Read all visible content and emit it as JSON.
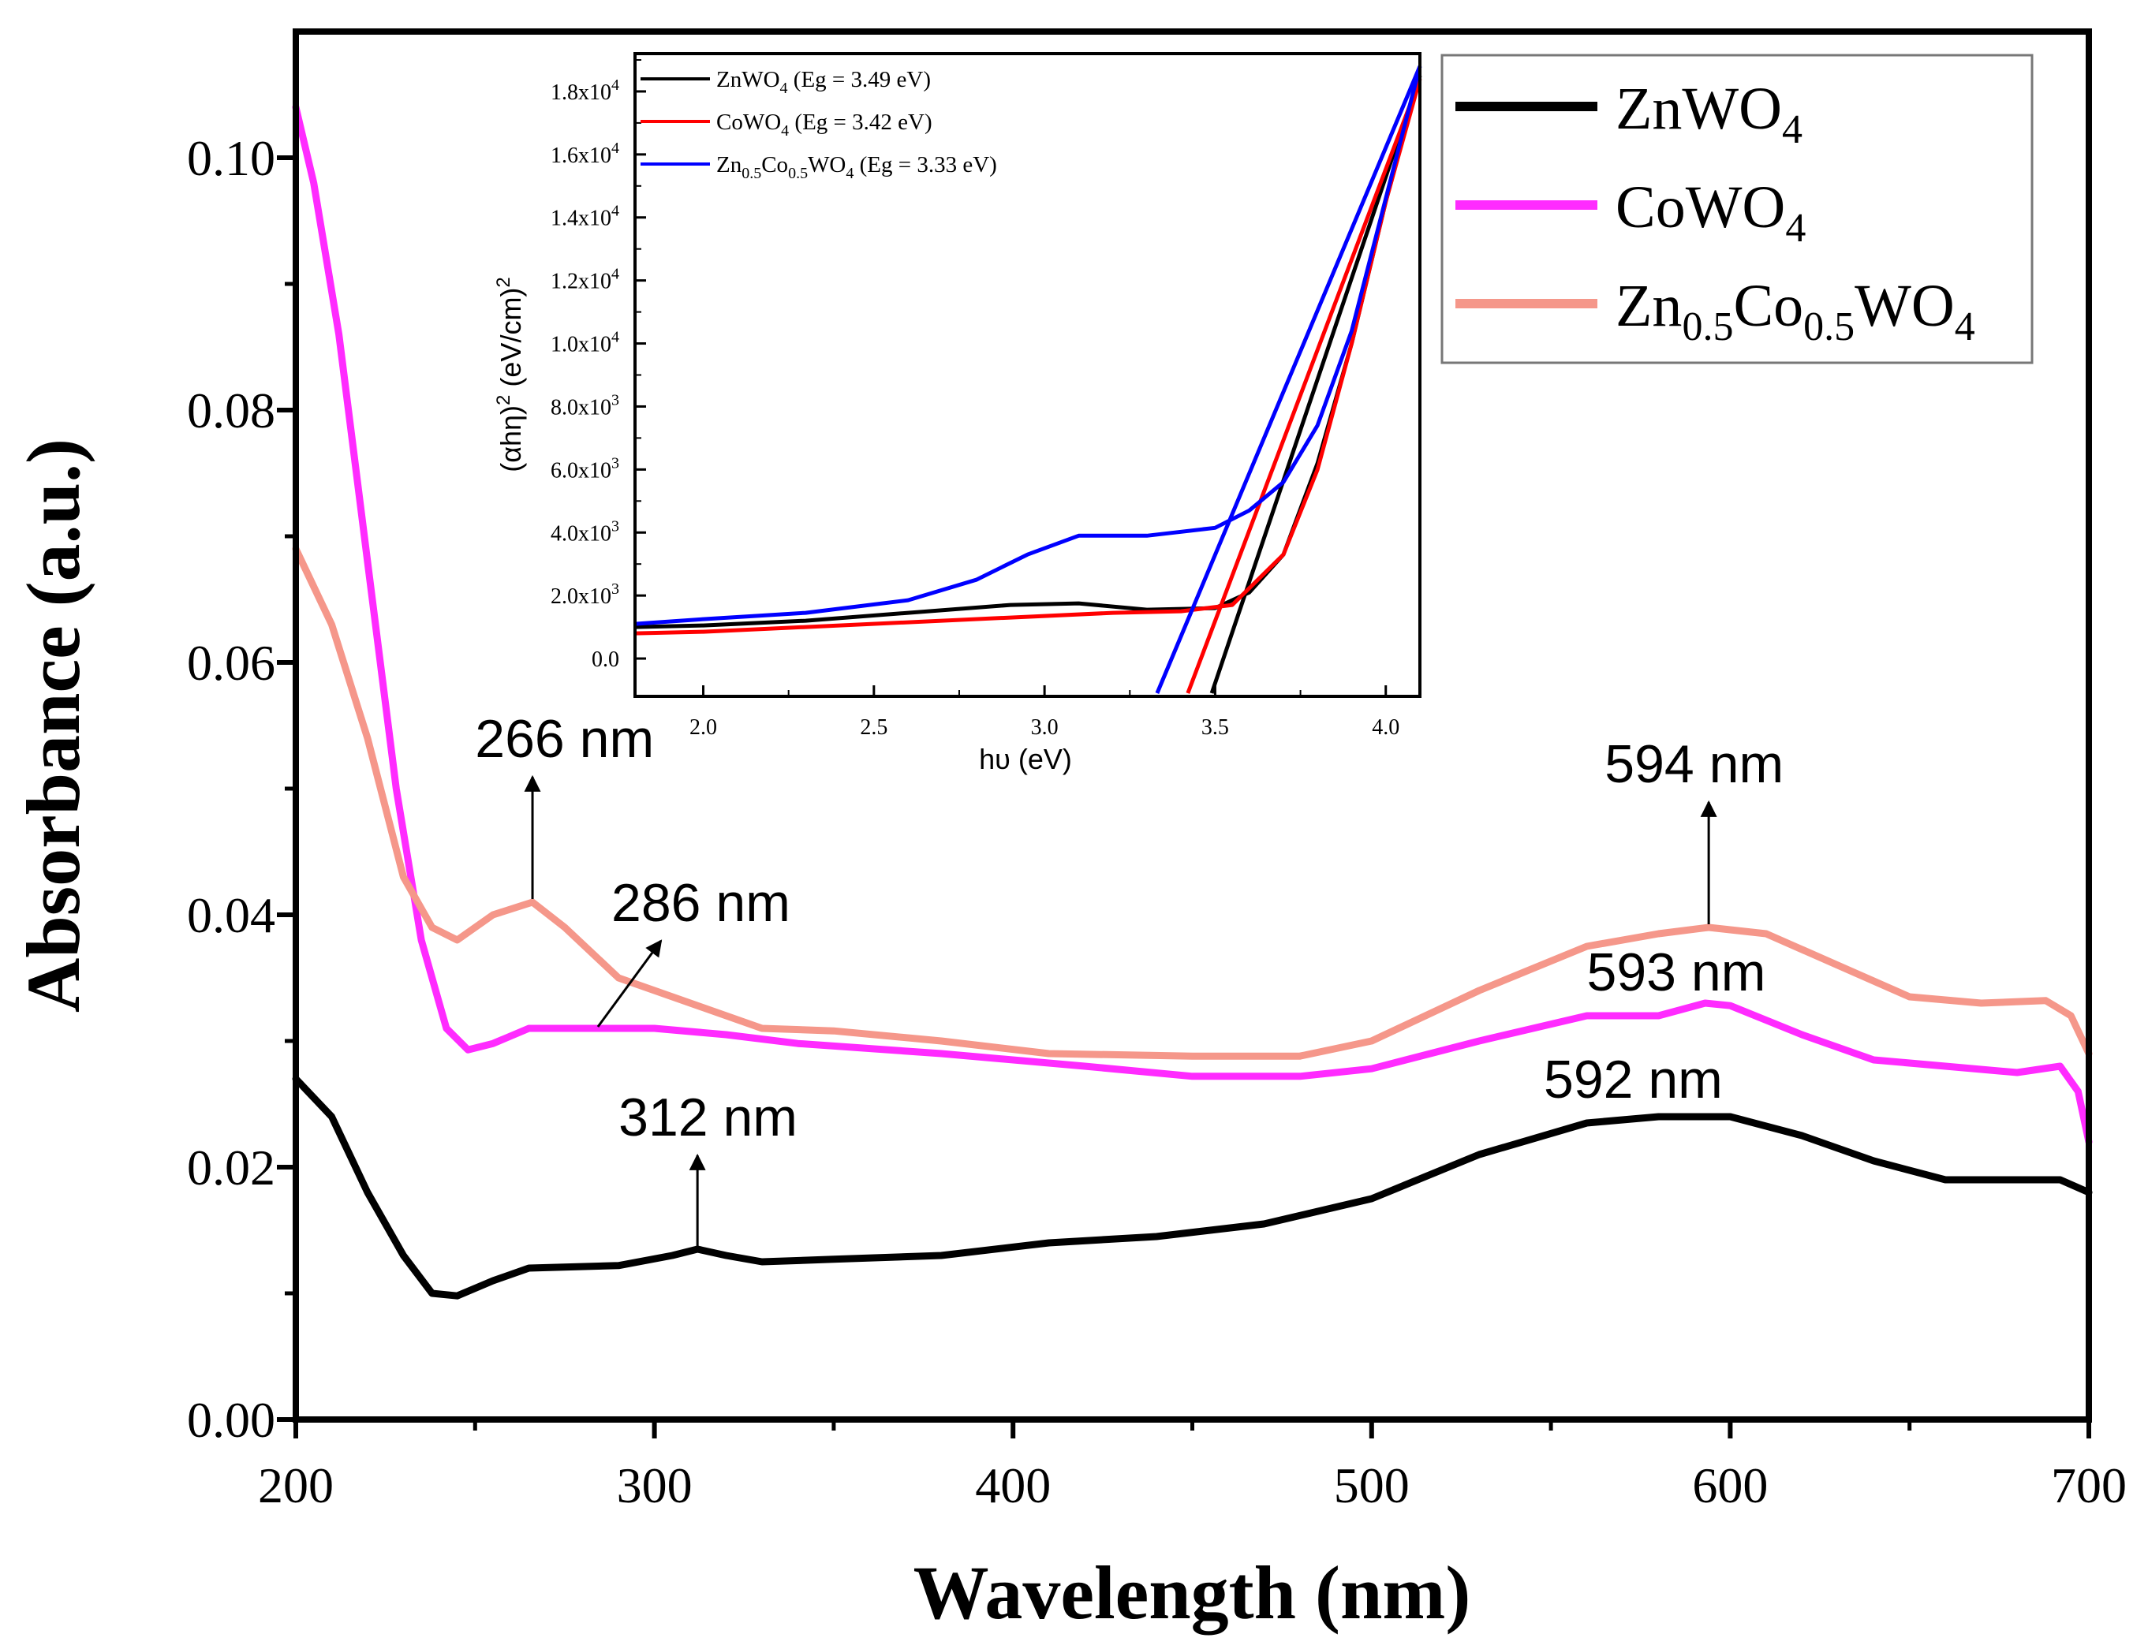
{
  "chart_data": [
    {
      "type": "line",
      "xlabel": "Wavelength (nm)",
      "ylabel": "Absorbance (a.u.)",
      "xlim": [
        200,
        700
      ],
      "ylim": [
        0.0,
        0.11
      ],
      "x_ticks": [
        "200",
        "300",
        "400",
        "500",
        "600",
        "700"
      ],
      "y_ticks": [
        "0.00",
        "0.02",
        "0.04",
        "0.06",
        "0.08",
        "0.10"
      ],
      "legend_position": "top-right",
      "series": [
        {
          "name": "ZnWO4",
          "legend": {
            "base": "ZnWO",
            "sub": "4",
            "base2": "",
            "sub2": "",
            "tail": ""
          },
          "color": "#000000",
          "points": [
            [
              200,
              0.027
            ],
            [
              210,
              0.024
            ],
            [
              220,
              0.018
            ],
            [
              230,
              0.013
            ],
            [
              238,
              0.01
            ],
            [
              245,
              0.0098
            ],
            [
              255,
              0.011
            ],
            [
              265,
              0.012
            ],
            [
              290,
              0.0122
            ],
            [
              305,
              0.013
            ],
            [
              312,
              0.0135
            ],
            [
              320,
              0.013
            ],
            [
              330,
              0.0125
            ],
            [
              350,
              0.0127
            ],
            [
              380,
              0.013
            ],
            [
              410,
              0.014
            ],
            [
              440,
              0.0145
            ],
            [
              470,
              0.0155
            ],
            [
              500,
              0.0175
            ],
            [
              530,
              0.021
            ],
            [
              560,
              0.0235
            ],
            [
              580,
              0.024
            ],
            [
              600,
              0.024
            ],
            [
              620,
              0.0225
            ],
            [
              640,
              0.0205
            ],
            [
              660,
              0.019
            ],
            [
              680,
              0.019
            ],
            [
              692,
              0.019
            ],
            [
              700,
              0.018
            ]
          ]
        },
        {
          "name": "CoWO4",
          "legend": {
            "base": "CoWO",
            "sub": "4",
            "base2": "",
            "sub2": "",
            "tail": ""
          },
          "color": "#ff2bff",
          "points": [
            [
              200,
              0.104
            ],
            [
              205,
              0.098
            ],
            [
              212,
              0.086
            ],
            [
              220,
              0.068
            ],
            [
              228,
              0.05
            ],
            [
              235,
              0.038
            ],
            [
              242,
              0.031
            ],
            [
              248,
              0.0293
            ],
            [
              255,
              0.0298
            ],
            [
              265,
              0.031
            ],
            [
              300,
              0.031
            ],
            [
              320,
              0.0305
            ],
            [
              340,
              0.0298
            ],
            [
              380,
              0.029
            ],
            [
              420,
              0.028
            ],
            [
              450,
              0.0272
            ],
            [
              480,
              0.0272
            ],
            [
              500,
              0.0278
            ],
            [
              530,
              0.03
            ],
            [
              560,
              0.032
            ],
            [
              580,
              0.032
            ],
            [
              593,
              0.033
            ],
            [
              600,
              0.0328
            ],
            [
              620,
              0.0305
            ],
            [
              640,
              0.0285
            ],
            [
              660,
              0.028
            ],
            [
              680,
              0.0275
            ],
            [
              692,
              0.028
            ],
            [
              697,
              0.026
            ],
            [
              700,
              0.022
            ]
          ]
        },
        {
          "name": "Zn0.5Co0.5WO4",
          "legend": {
            "base": "Zn",
            "sub": "0.5",
            "base2": "Co",
            "sub2": "0.5",
            "tail": "WO"
          },
          "color": "#f5978a",
          "points": [
            [
              200,
              0.069
            ],
            [
              210,
              0.063
            ],
            [
              220,
              0.054
            ],
            [
              230,
              0.043
            ],
            [
              238,
              0.039
            ],
            [
              245,
              0.038
            ],
            [
              255,
              0.04
            ],
            [
              266,
              0.041
            ],
            [
              275,
              0.039
            ],
            [
              290,
              0.035
            ],
            [
              310,
              0.033
            ],
            [
              330,
              0.031
            ],
            [
              350,
              0.0308
            ],
            [
              380,
              0.03
            ],
            [
              410,
              0.029
            ],
            [
              450,
              0.0288
            ],
            [
              480,
              0.0288
            ],
            [
              500,
              0.03
            ],
            [
              530,
              0.034
            ],
            [
              560,
              0.0375
            ],
            [
              580,
              0.0385
            ],
            [
              594,
              0.039
            ],
            [
              610,
              0.0385
            ],
            [
              630,
              0.036
            ],
            [
              650,
              0.0335
            ],
            [
              670,
              0.033
            ],
            [
              688,
              0.0332
            ],
            [
              695,
              0.032
            ],
            [
              700,
              0.029
            ]
          ]
        }
      ],
      "annotations": [
        {
          "text": "266 nm",
          "x": 266,
          "y": 0.041,
          "text_x": 250,
          "text_y": 0.0525,
          "arrow": "up"
        },
        {
          "text": "286 nm",
          "x": 286,
          "y": 0.031,
          "text_x": 288,
          "text_y": 0.0395,
          "arrow": "up-right"
        },
        {
          "text": "312 nm",
          "x": 312,
          "y": 0.0135,
          "text_x": 290,
          "text_y": 0.0225,
          "arrow": "up"
        },
        {
          "text": "594 nm",
          "x": 594,
          "y": 0.039,
          "text_x": 565,
          "text_y": 0.0505,
          "arrow": "up"
        },
        {
          "text": "593 nm",
          "x": 593,
          "y": 0.033,
          "text_x": 560,
          "text_y": 0.034,
          "arrow": "none"
        },
        {
          "text": "592 nm",
          "x": 592,
          "y": 0.024,
          "text_x": 548,
          "text_y": 0.0255,
          "arrow": "none"
        }
      ]
    },
    {
      "type": "line",
      "inset": true,
      "xlabel": "hυ (eV)",
      "ylabel_parts": [
        "(αhη)",
        "2",
        " (eV/cm)",
        "2"
      ],
      "xlim": [
        1.8,
        4.1
      ],
      "ylim": [
        -1200,
        19200
      ],
      "x_ticks": [
        "2.0",
        "2.5",
        "3.0",
        "3.5",
        "4.0"
      ],
      "y_ticks": [
        {
          "value": 0,
          "label": "0.0",
          "exp": ""
        },
        {
          "value": 2000,
          "label": "2.0x10",
          "exp": "3"
        },
        {
          "value": 4000,
          "label": "4.0x10",
          "exp": "3"
        },
        {
          "value": 6000,
          "label": "6.0x10",
          "exp": "3"
        },
        {
          "value": 8000,
          "label": "8.0x10",
          "exp": "3"
        },
        {
          "value": 10000,
          "label": "1.0x10",
          "exp": "4"
        },
        {
          "value": 12000,
          "label": "1.2x10",
          "exp": "4"
        },
        {
          "value": 14000,
          "label": "1.4x10",
          "exp": "4"
        },
        {
          "value": 16000,
          "label": "1.6x10",
          "exp": "4"
        },
        {
          "value": 18000,
          "label": "1.8x10",
          "exp": "4"
        }
      ],
      "legend_position": "top-left",
      "series": [
        {
          "name": "ZnWO4 (Eg = 3.49 eV)",
          "legend": {
            "base": "ZnWO",
            "sub": "4",
            "base2": "",
            "sub2": "",
            "tail": "",
            "suffix": " (Eg = 3.49 eV)"
          },
          "color": "#000000",
          "points": [
            [
              1.8,
              1000
            ],
            [
              2.0,
              1050
            ],
            [
              2.3,
              1200
            ],
            [
              2.6,
              1450
            ],
            [
              2.9,
              1700
            ],
            [
              3.1,
              1750
            ],
            [
              3.3,
              1550
            ],
            [
              3.5,
              1600
            ],
            [
              3.6,
              2100
            ],
            [
              3.7,
              3300
            ],
            [
              3.8,
              6200
            ],
            [
              3.9,
              10000
            ],
            [
              4.0,
              14500
            ],
            [
              4.1,
              18500
            ]
          ],
          "fit": [
            [
              3.49,
              -1100
            ],
            [
              4.1,
              18500
            ]
          ]
        },
        {
          "name": "CoWO4 (Eg = 3.42 eV)",
          "legend": {
            "base": "CoWO",
            "sub": "4",
            "base2": "",
            "sub2": "",
            "tail": "",
            "suffix": " (Eg = 3.42 eV)"
          },
          "color": "#ff0000",
          "points": [
            [
              1.8,
              800
            ],
            [
              2.0,
              850
            ],
            [
              2.3,
              1000
            ],
            [
              2.6,
              1150
            ],
            [
              2.9,
              1300
            ],
            [
              3.2,
              1450
            ],
            [
              3.4,
              1500
            ],
            [
              3.55,
              1700
            ],
            [
              3.7,
              3300
            ],
            [
              3.8,
              6000
            ],
            [
              3.9,
              10000
            ],
            [
              4.0,
              14500
            ],
            [
              4.1,
              18400
            ]
          ],
          "fit": [
            [
              3.42,
              -1100
            ],
            [
              4.1,
              18400
            ]
          ]
        },
        {
          "name": "Zn0.5Co0.5WO4 (Eg = 3.33 eV)",
          "legend": {
            "base": "Zn",
            "sub": "0.5",
            "base2": "Co",
            "sub2": "0.5",
            "tail": "WO",
            "suffix": "4 (Eg = 3.33 eV)"
          },
          "color": "#0000ff",
          "points": [
            [
              1.8,
              1100
            ],
            [
              2.0,
              1250
            ],
            [
              2.3,
              1450
            ],
            [
              2.6,
              1850
            ],
            [
              2.8,
              2500
            ],
            [
              2.95,
              3300
            ],
            [
              3.1,
              3900
            ],
            [
              3.3,
              3900
            ],
            [
              3.5,
              4150
            ],
            [
              3.6,
              4700
            ],
            [
              3.7,
              5600
            ],
            [
              3.8,
              7400
            ],
            [
              3.9,
              10400
            ],
            [
              4.0,
              14600
            ],
            [
              4.1,
              18800
            ]
          ],
          "fit": [
            [
              3.33,
              -1100
            ],
            [
              4.1,
              18800
            ]
          ]
        }
      ]
    }
  ]
}
